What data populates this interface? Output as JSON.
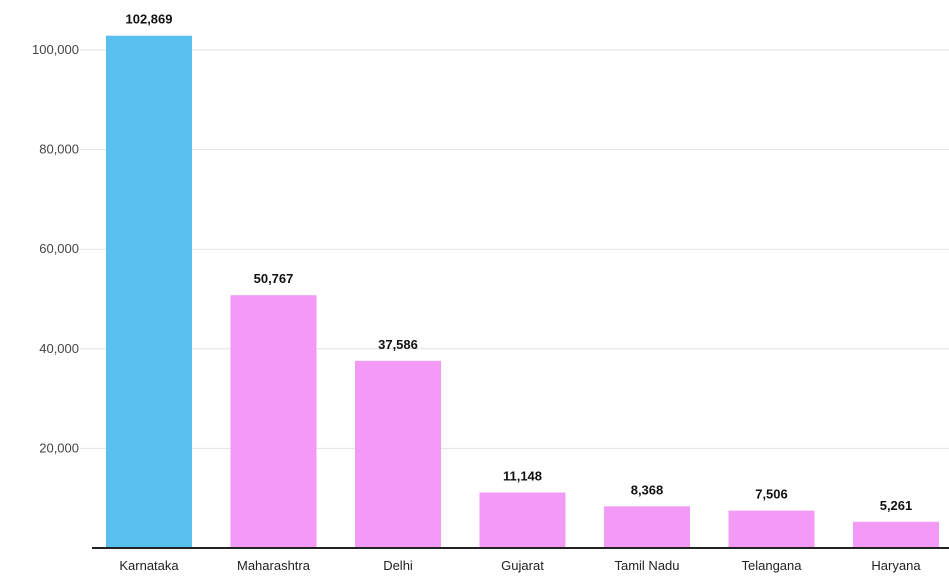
{
  "chart_data": {
    "type": "bar",
    "title": "",
    "xlabel": "",
    "ylabel": "",
    "categories": [
      "Karnataka",
      "Maharashtra",
      "Delhi",
      "Gujarat",
      "Tamil Nadu",
      "Telangana",
      "Haryana"
    ],
    "values": [
      102869,
      50767,
      37586,
      11148,
      8368,
      7506,
      5261
    ],
    "value_labels": [
      "102,869",
      "50,767",
      "37,586",
      "11,148",
      "8,368",
      "7,506",
      "5,261"
    ],
    "ylim": [
      0,
      100000
    ],
    "yticks": [
      20000,
      40000,
      60000,
      80000,
      100000
    ],
    "ytick_labels": [
      "20,000",
      "40,000",
      "60,000",
      "80,000",
      "100,000"
    ],
    "grid": true,
    "legend": "none",
    "colors": {
      "highlight": "#57c0ee",
      "default": "#f29af5",
      "axis": "#222222",
      "grid": "#e2e2e2"
    },
    "highlight_index": 0
  }
}
